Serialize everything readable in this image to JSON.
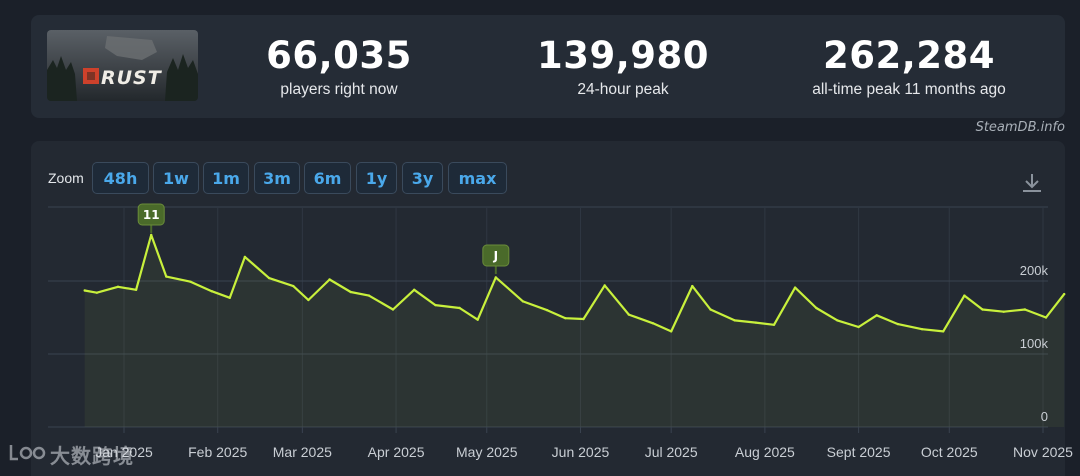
{
  "header": {
    "logo_text": "RUST",
    "stats": [
      {
        "value": "66,035",
        "label": "players right now"
      },
      {
        "value": "139,980",
        "label": "24-hour peak"
      },
      {
        "value": "262,284",
        "label": "all-time peak 11 months ago"
      }
    ],
    "attribution": "SteamDB.info"
  },
  "zoom": {
    "label": "Zoom",
    "options": [
      "48h",
      "1w",
      "1m",
      "3m",
      "6m",
      "1y",
      "3y",
      "max"
    ]
  },
  "watermark": "大数跨境",
  "colors": {
    "line": "#c8f03c",
    "grid": "#3a4350",
    "axis_text": "#c9ced4",
    "flag_bg": "#4a6a2a",
    "button_text": "#4aa8ea"
  },
  "chart_data": {
    "type": "line",
    "series": [
      {
        "x": [
          "2024-12-19",
          "2024-12-23",
          "2024-12-30",
          "2025-01-05",
          "2025-01-10",
          "2025-01-15",
          "2025-01-23",
          "2025-01-30",
          "2025-02-05",
          "2025-02-10",
          "2025-02-18",
          "2025-02-26",
          "2025-03-03",
          "2025-03-10",
          "2025-03-17",
          "2025-03-23",
          "2025-03-31",
          "2025-04-07",
          "2025-04-14",
          "2025-04-22",
          "2025-04-28",
          "2025-05-04",
          "2025-05-13",
          "2025-05-21",
          "2025-05-27",
          "2025-06-02",
          "2025-06-09",
          "2025-06-17",
          "2025-06-25",
          "2025-07-01",
          "2025-07-08",
          "2025-07-14",
          "2025-07-22",
          "2025-07-29",
          "2025-08-04",
          "2025-08-11",
          "2025-08-18",
          "2025-08-25",
          "2025-09-01",
          "2025-09-07",
          "2025-09-14",
          "2025-09-22",
          "2025-09-29",
          "2025-10-06",
          "2025-10-12",
          "2025-10-19",
          "2025-10-26",
          "2025-11-02",
          "2025-11-08"
        ],
        "y": [
          187,
          184,
          192,
          188,
          263,
          206,
          199,
          186,
          177,
          233,
          204,
          193,
          174,
          202,
          185,
          180,
          161,
          188,
          167,
          163,
          147,
          205,
          172,
          160,
          149,
          148,
          194,
          154,
          142,
          131,
          193,
          161,
          146,
          143,
          140,
          191,
          163,
          146,
          137,
          153,
          141,
          134,
          131,
          180,
          161,
          158,
          161,
          150,
          182
        ]
      }
    ],
    "annotations": [
      {
        "label": "11",
        "x": "2025-01-10"
      },
      {
        "label": "J",
        "x": "2025-05-04"
      }
    ],
    "x_tick_labels": [
      "Jan 2025",
      "Feb 2025",
      "Mar 2025",
      "Apr 2025",
      "May 2025",
      "Jun 2025",
      "Jul 2025",
      "Aug 2025",
      "Sept 2025",
      "Oct 2025",
      "Nov 2025"
    ],
    "y_tick_labels": [
      "0",
      "100k",
      "200k"
    ],
    "y_ticks": [
      0,
      100,
      200
    ],
    "ylim": [
      0,
      300
    ],
    "grid": true
  }
}
